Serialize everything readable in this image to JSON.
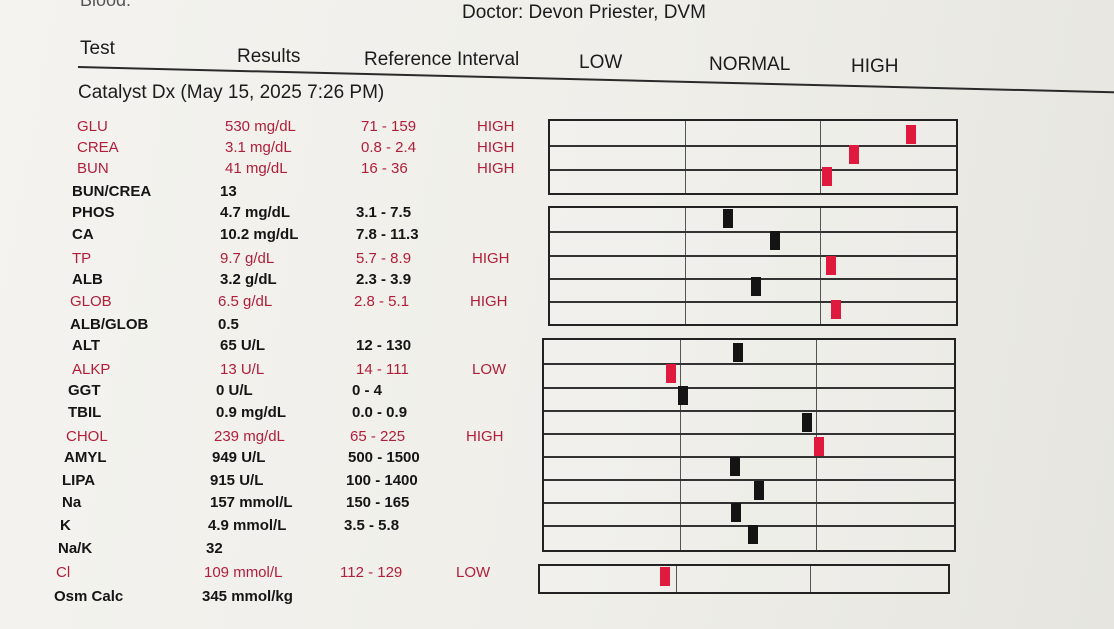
{
  "doctor": "Doctor: Devon Priester, DVM",
  "top_fragment": "Blood:",
  "header": {
    "test": "Test",
    "results": "Results",
    "reference": "Reference Interval",
    "low": "LOW",
    "normal": "NORMAL",
    "high": "HIGH"
  },
  "section_title": "Catalyst Dx (May 15, 2025 7:26 PM)",
  "rows": [
    {
      "test": "GLU",
      "result": "530 mg/dL",
      "ref": "71 - 159",
      "flag": "HIGH",
      "status": "high",
      "level": 0.9
    },
    {
      "test": "CREA",
      "result": "3.1 mg/dL",
      "ref": "0.8 - 2.4",
      "flag": "HIGH",
      "status": "high",
      "level": 0.76
    },
    {
      "test": "BUN",
      "result": "41 mg/dL",
      "ref": "16 - 36",
      "flag": "HIGH",
      "status": "high",
      "level": 0.7
    },
    {
      "test": "BUN/CREA",
      "result": "13",
      "ref": "",
      "flag": "",
      "status": "normal"
    },
    {
      "test": "PHOS",
      "result": "4.7 mg/dL",
      "ref": "3.1 - 7.5",
      "flag": "",
      "status": "normal",
      "level": 0.43
    },
    {
      "test": "CA",
      "result": "10.2 mg/dL",
      "ref": "7.8 - 11.3",
      "flag": "",
      "status": "normal",
      "level": 0.56
    },
    {
      "test": "TP",
      "result": "9.7 g/dL",
      "ref": "5.7 - 8.9",
      "flag": "HIGH",
      "status": "high",
      "level": 0.69
    },
    {
      "test": "ALB",
      "result": "3.2 g/dL",
      "ref": "2.3 - 3.9",
      "flag": "",
      "status": "normal",
      "level": 0.52
    },
    {
      "test": "GLOB",
      "result": "6.5 g/dL",
      "ref": "2.8 - 5.1",
      "flag": "HIGH",
      "status": "high",
      "level": 0.69
    },
    {
      "test": "ALB/GLOB",
      "result": "0.5",
      "ref": "",
      "flag": "",
      "status": "normal"
    },
    {
      "test": "ALT",
      "result": "65 U/L",
      "ref": "12 - 130",
      "flag": "",
      "status": "normal",
      "level": 0.48
    },
    {
      "test": "ALKP",
      "result": "13 U/L",
      "ref": "14 - 111",
      "flag": "LOW",
      "status": "low",
      "level": 0.31
    },
    {
      "test": "GGT",
      "result": "0 U/L",
      "ref": "0 - 4",
      "flag": "",
      "status": "normal",
      "level": 0.35
    },
    {
      "test": "TBIL",
      "result": "0.9 mg/dL",
      "ref": "0.0 - 0.9",
      "flag": "",
      "status": "normal",
      "level": 0.64
    },
    {
      "test": "CHOL",
      "result": "239 mg/dL",
      "ref": "65 - 225",
      "flag": "HIGH",
      "status": "high",
      "level": 0.67
    },
    {
      "test": "AMYL",
      "result": "949 U/L",
      "ref": "500 - 1500",
      "flag": "",
      "status": "normal",
      "level": 0.46
    },
    {
      "test": "LIPA",
      "result": "915 U/L",
      "ref": "100 - 1400",
      "flag": "",
      "status": "normal",
      "level": 0.52
    },
    {
      "test": "Na",
      "result": "157 mmol/L",
      "ref": "150 - 165",
      "flag": "",
      "status": "normal",
      "level": 0.46
    },
    {
      "test": "K",
      "result": "4.9 mmol/L",
      "ref": "3.5 - 5.8",
      "flag": "",
      "status": "normal",
      "level": 0.51
    },
    {
      "test": "Na/K",
      "result": "32",
      "ref": "",
      "flag": "",
      "status": "normal"
    },
    {
      "test": "Cl",
      "result": "109 mmol/L",
      "ref": "112 - 129",
      "flag": "LOW",
      "status": "low",
      "level": 0.3
    },
    {
      "test": "Osm Calc",
      "result": "345 mmol/kg",
      "ref": "",
      "flag": "",
      "status": "normal"
    }
  ]
}
